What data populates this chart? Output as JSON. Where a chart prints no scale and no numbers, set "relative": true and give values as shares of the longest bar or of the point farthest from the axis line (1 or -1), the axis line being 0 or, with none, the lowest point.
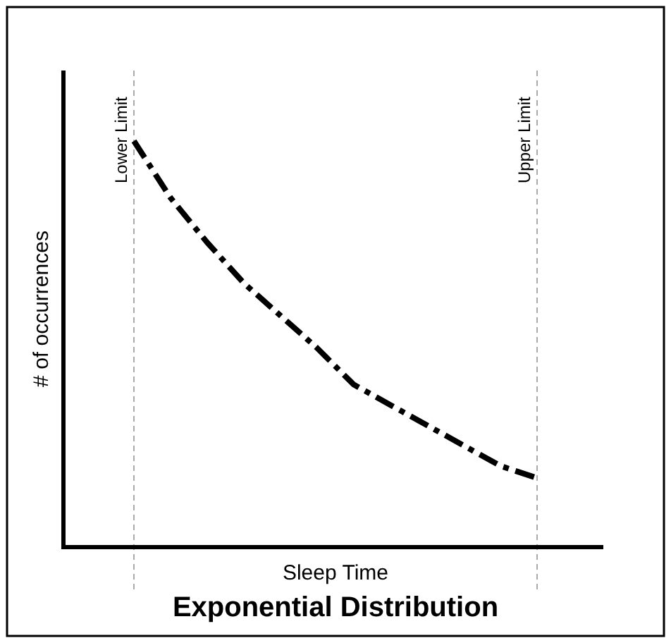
{
  "chart_data": {
    "type": "line",
    "title": "Exponential Distribution",
    "xlabel": "Sleep Time",
    "ylabel": "# of occurrences",
    "relative": true,
    "line_style": "dashed",
    "categories": [
      null,
      null,
      null,
      null,
      null,
      null,
      null,
      null,
      null,
      null,
      null,
      null
    ],
    "series": [
      {
        "color": "#000000",
        "values": [
          1,
          0.86,
          0.75,
          0.65,
          0.57,
          0.49,
          0.4,
          0.35,
          0.3,
          0.25,
          0.2,
          0.17
        ]
      }
    ],
    "ref_lines": [
      {
        "axis": "x",
        "label": "Lower Limit",
        "color": "#aaaaaa",
        "line_style": "dashed"
      },
      {
        "axis": "x",
        "label": "Upper Limit",
        "color": "#aaaaaa",
        "line_style": "dashed"
      }
    ]
  }
}
